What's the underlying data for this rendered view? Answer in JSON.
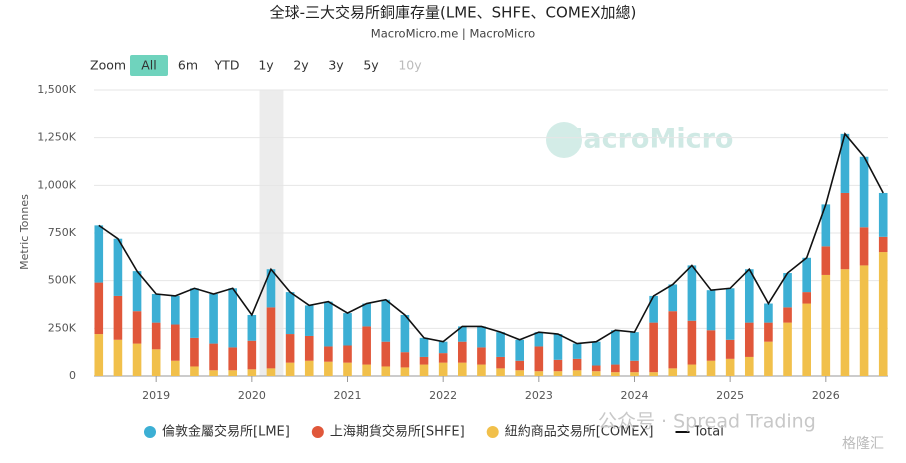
{
  "chart_data": {
    "type": "bar",
    "stacked": true,
    "title": "全球-三大交易所銅庫存量(LME、SHFE、COMEX加總)",
    "subtitle": "MacroMicro.me | MacroMicro",
    "y_label": "Metric Tonnes",
    "watermark": "MacroMicro",
    "overlay_texts": [
      "公众号 · Spread Trading",
      "格隆汇"
    ],
    "range_selector": {
      "label": "Zoom",
      "buttons": [
        "All",
        "6m",
        "YTD",
        "1y",
        "2y",
        "3y",
        "5y",
        "10y"
      ],
      "active": "All",
      "disabled": [
        "10y"
      ]
    },
    "highlight": [
      2020.08,
      2020.33
    ],
    "x": [
      2018.4,
      2018.6,
      2018.8,
      2019.0,
      2019.2,
      2019.4,
      2019.6,
      2019.8,
      2020.0,
      2020.2,
      2020.4,
      2020.6,
      2020.8,
      2021.0,
      2021.2,
      2021.4,
      2021.6,
      2021.8,
      2022.0,
      2022.2,
      2022.4,
      2022.6,
      2022.8,
      2023.0,
      2023.2,
      2023.4,
      2023.6,
      2023.8,
      2024.0,
      2024.2,
      2024.4,
      2024.6,
      2024.8,
      2025.0,
      2025.2,
      2025.4,
      2025.6,
      2025.8,
      2026.0,
      2026.2,
      2026.4,
      2026.6
    ],
    "xlim": [
      2018.35,
      2026.65
    ],
    "xticks": [
      2019,
      2020,
      2021,
      2022,
      2023,
      2024,
      2025,
      2026
    ],
    "ylim": [
      0,
      1500000
    ],
    "yticks": [
      {
        "value": 0,
        "label": "0"
      },
      {
        "value": 250000,
        "label": "250K"
      },
      {
        "value": 500000,
        "label": "500K"
      },
      {
        "value": 750000,
        "label": "750K"
      },
      {
        "value": 1000000,
        "label": "1,000K"
      },
      {
        "value": 1250000,
        "label": "1,250K"
      },
      {
        "value": 1500000,
        "label": "1,500K"
      }
    ],
    "grid": true,
    "series": [
      {
        "name": "倫敦金屬交易所[LME]",
        "color": "#3cafd4",
        "values": [
          300000,
          300000,
          210000,
          150000,
          150000,
          260000,
          260000,
          310000,
          135000,
          200000,
          220000,
          160000,
          235000,
          170000,
          120000,
          220000,
          195000,
          100000,
          60000,
          80000,
          110000,
          130000,
          110000,
          75000,
          135000,
          80000,
          125000,
          180000,
          150000,
          140000,
          140000,
          290000,
          210000,
          270000,
          280000,
          100000,
          180000,
          180000,
          220000,
          310000,
          370000,
          230000
        ]
      },
      {
        "name": "上海期貨交易所[SHFE]",
        "color": "#e0573a",
        "values": [
          270000,
          230000,
          170000,
          140000,
          190000,
          150000,
          140000,
          120000,
          150000,
          320000,
          150000,
          130000,
          80000,
          90000,
          200000,
          130000,
          80000,
          40000,
          50000,
          110000,
          90000,
          60000,
          50000,
          130000,
          60000,
          60000,
          30000,
          40000,
          60000,
          260000,
          300000,
          230000,
          160000,
          100000,
          180000,
          100000,
          80000,
          60000,
          150000,
          400000,
          200000,
          80000
        ]
      },
      {
        "name": "紐約商品交易所[COMEX]",
        "color": "#f1c04b",
        "values": [
          220000,
          190000,
          170000,
          140000,
          80000,
          50000,
          30000,
          30000,
          35000,
          40000,
          70000,
          80000,
          75000,
          70000,
          60000,
          50000,
          45000,
          60000,
          70000,
          70000,
          60000,
          40000,
          30000,
          25000,
          25000,
          30000,
          25000,
          20000,
          20000,
          20000,
          40000,
          60000,
          80000,
          90000,
          100000,
          180000,
          280000,
          380000,
          530000,
          560000,
          580000,
          650000
        ]
      },
      {
        "name": "Total",
        "type": "line",
        "color": "#111111",
        "values": [
          790000,
          720000,
          550000,
          430000,
          420000,
          460000,
          430000,
          460000,
          320000,
          560000,
          440000,
          370000,
          390000,
          330000,
          380000,
          400000,
          320000,
          200000,
          180000,
          260000,
          260000,
          230000,
          190000,
          230000,
          220000,
          170000,
          180000,
          240000,
          230000,
          420000,
          480000,
          580000,
          450000,
          460000,
          560000,
          380000,
          540000,
          620000,
          900000,
          1270000,
          1150000,
          960000
        ]
      }
    ]
  }
}
